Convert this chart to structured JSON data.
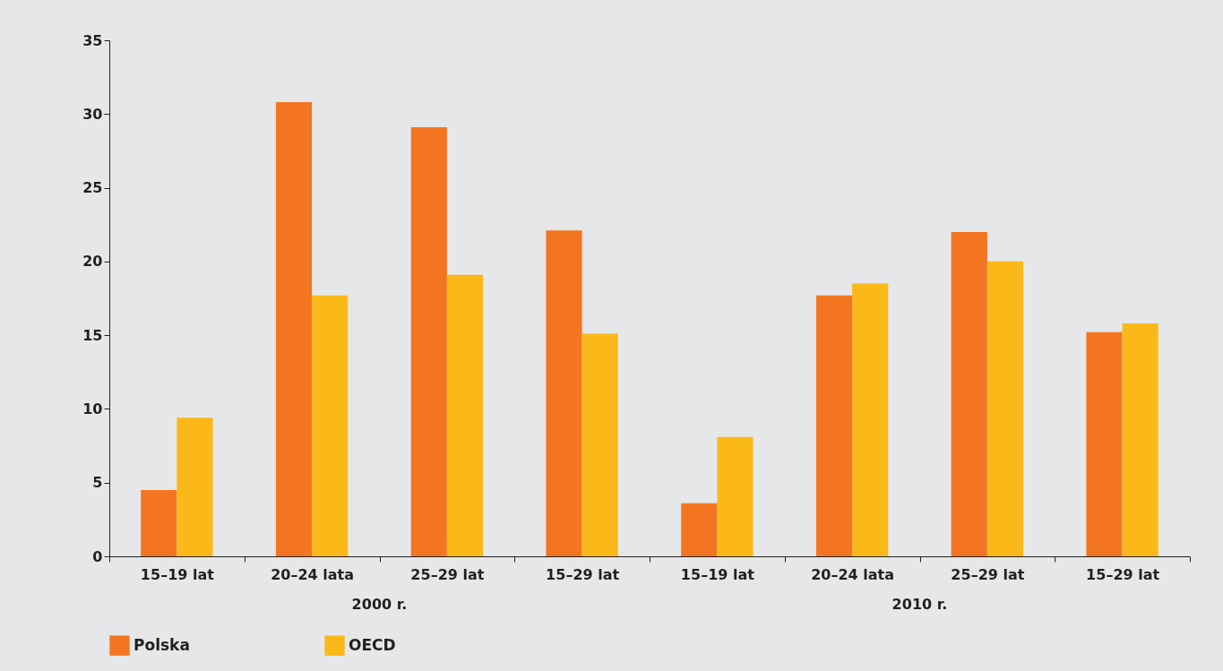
{
  "chart_data": {
    "type": "bar",
    "categories": [
      "15–19 lat",
      "20–24 lata",
      "25–29 lat",
      "15–29 lat",
      "15–19 lat",
      "20–24 lata",
      "25–29 lat",
      "15–29 lat"
    ],
    "series": [
      {
        "name": "Polska",
        "color": "#f47521",
        "values": [
          4.5,
          30.8,
          29.1,
          22.1,
          3.6,
          17.7,
          22.0,
          15.2
        ]
      },
      {
        "name": "OECD",
        "color": "#fbb919",
        "values": [
          9.4,
          17.7,
          19.1,
          15.1,
          8.1,
          18.5,
          20.0,
          15.8
        ]
      }
    ],
    "ylim": [
      0,
      35
    ],
    "yticks": [
      0,
      5,
      10,
      15,
      20,
      25,
      30,
      35
    ],
    "annotations": [
      "2000 r.",
      "2010 r."
    ],
    "legend": "bottom"
  }
}
